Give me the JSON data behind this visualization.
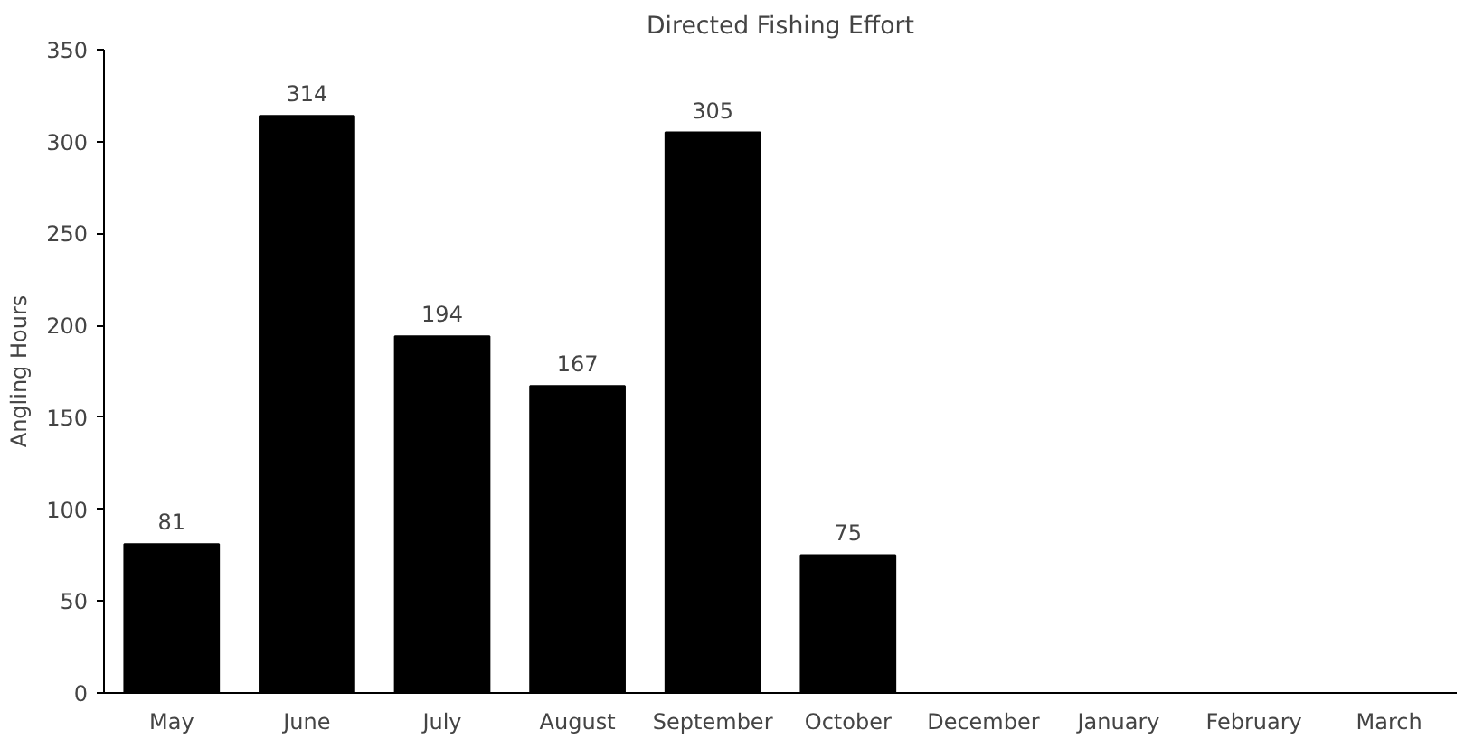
{
  "chart_data": {
    "type": "bar",
    "title": "Directed Fishing Effort",
    "ylabel": "Angling Hours",
    "categories": [
      "May",
      "June",
      "July",
      "August",
      "September",
      "October",
      "December",
      "January",
      "February",
      "March"
    ],
    "values": [
      81,
      314,
      194,
      167,
      305,
      75,
      null,
      null,
      null,
      null
    ],
    "color": "#000000",
    "ylim": [
      0,
      350
    ],
    "yticks": [
      0,
      50,
      100,
      150,
      200,
      250,
      300,
      350
    ],
    "data_labels": true,
    "grid": false
  }
}
